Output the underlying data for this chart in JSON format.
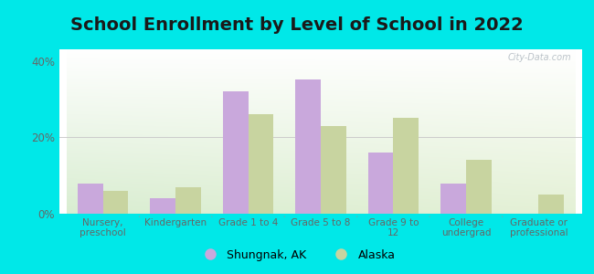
{
  "title": "School Enrollment by Level of School in 2022",
  "categories": [
    "Nursery,\npreschool",
    "Kindergarten",
    "Grade 1 to 4",
    "Grade 5 to 8",
    "Grade 9 to\n12",
    "College\nundergrad",
    "Graduate or\nprofessional"
  ],
  "shungnak": [
    8.0,
    4.0,
    32.0,
    35.0,
    16.0,
    8.0,
    0.0
  ],
  "alaska": [
    6.0,
    7.0,
    26.0,
    23.0,
    25.0,
    14.0,
    5.0
  ],
  "shungnak_color": "#c9a8dc",
  "alaska_color": "#c8d4a0",
  "bg_outer": "#00e8e8",
  "ylim": [
    0,
    43
  ],
  "yticks": [
    0,
    20,
    40
  ],
  "ytick_labels": [
    "0%",
    "20%",
    "40%"
  ],
  "legend_shungnak": "Shungnak, AK",
  "legend_alaska": "Alaska",
  "bar_width": 0.35,
  "watermark": "City-Data.com",
  "title_fontsize": 14,
  "title_color": "#1a1a1a"
}
